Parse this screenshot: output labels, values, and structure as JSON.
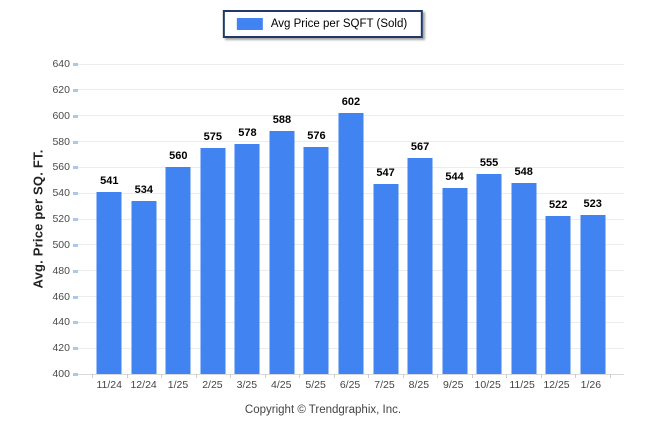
{
  "legend": {
    "label": "Avg Price per SQFT (Sold)",
    "swatch_color": "#4183f0"
  },
  "footer": {
    "copyright": "Copyright © Trendgraphix, Inc."
  },
  "chart_data": {
    "type": "bar",
    "title": "",
    "xlabel": "",
    "ylabel": "Avg. Price per SQ. FT.",
    "categories": [
      "11/24",
      "12/24",
      "1/25",
      "2/25",
      "3/25",
      "4/25",
      "5/25",
      "6/25",
      "7/25",
      "8/25",
      "9/25",
      "10/25",
      "11/25",
      "12/25",
      "1/26"
    ],
    "series": [
      {
        "name": "Avg Price per SQFT (Sold)",
        "values": [
          541,
          534,
          560,
          575,
          578,
          588,
          576,
          602,
          547,
          567,
          544,
          555,
          548,
          522,
          523
        ]
      }
    ],
    "ylim": [
      400,
      640
    ],
    "ytick_step": 20,
    "grid": true,
    "legend_position": "top",
    "bar_color": "#4183f0",
    "data_labels": true
  }
}
